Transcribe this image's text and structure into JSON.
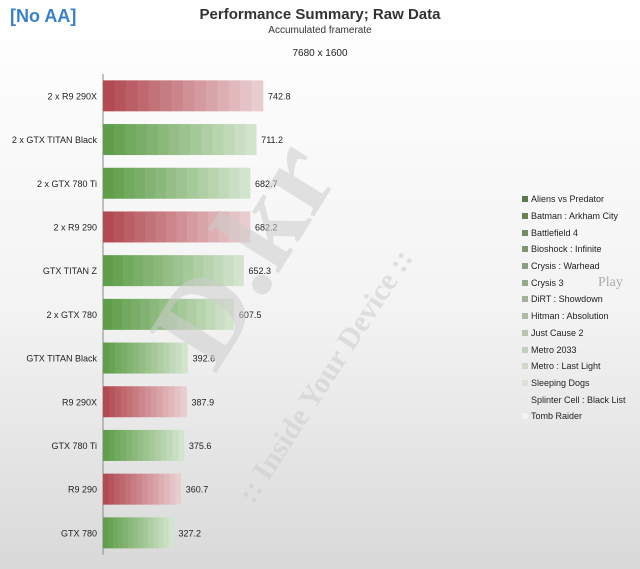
{
  "badge": "[No AA]",
  "watermark": {
    "main": "D.kr",
    "tagline": ":: Inside Your Device ::",
    "extra": "Play"
  },
  "colors": {
    "amd": "#b24a52",
    "nvidia": "#5f9e4a"
  },
  "chart_data": {
    "type": "bar",
    "orientation": "horizontal",
    "stacked": true,
    "title": "Performance Summary; Raw Data",
    "subtitle": "Accumulated framerate",
    "resolution": "7680 x 1600",
    "categories": [
      "2 x R9 290X",
      "2 x GTX TITAN Black",
      "2 x GTX 780 Ti",
      "2 x R9 290",
      "GTX TITAN Z",
      "2 x GTX 780",
      "GTX TITAN Black",
      "R9 290X",
      "GTX 780 Ti",
      "R9 290",
      "GTX 780"
    ],
    "vendor": [
      "amd",
      "nvidia",
      "nvidia",
      "amd",
      "nvidia",
      "nvidia",
      "nvidia",
      "amd",
      "nvidia",
      "amd",
      "nvidia"
    ],
    "totals": [
      742.8,
      711.2,
      682.7,
      682.2,
      652.3,
      607.5,
      392.6,
      387.9,
      375.6,
      360.7,
      327.2
    ],
    "total_labels": [
      "742.8",
      "711.2",
      "682.7",
      "682.2",
      "652.3",
      "607.5",
      "392.6",
      "387.9",
      "375.6",
      "360.7",
      "327.2"
    ],
    "series": [
      {
        "name": "Aliens vs Predator"
      },
      {
        "name": "Batman : Arkham City"
      },
      {
        "name": "Battlefield 4"
      },
      {
        "name": "Bioshock : Infinite"
      },
      {
        "name": "Crysis : Warhead"
      },
      {
        "name": "Crysis 3"
      },
      {
        "name": "DiRT : Showdown"
      },
      {
        "name": "Hitman : Absolution"
      },
      {
        "name": "Just Cause 2"
      },
      {
        "name": "Metro 2033"
      },
      {
        "name": "Metro : Last Light"
      },
      {
        "name": "Sleeping Dogs"
      },
      {
        "name": "Splinter Cell : Black List"
      },
      {
        "name": "Tomb Raider"
      }
    ],
    "xlim": [
      0,
      800
    ],
    "grid": false,
    "legend_position": "right"
  }
}
